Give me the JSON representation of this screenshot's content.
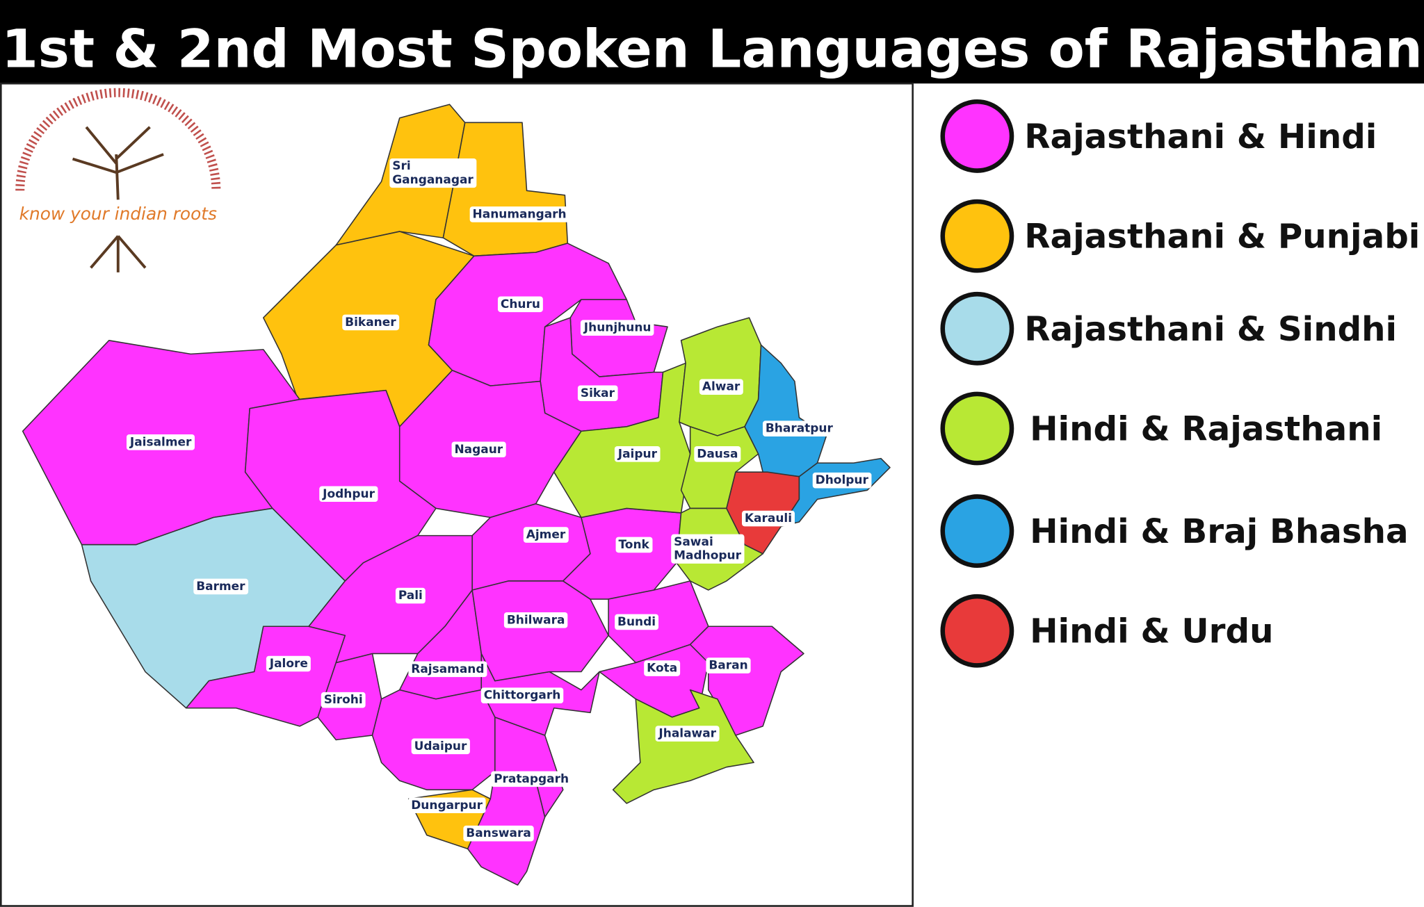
{
  "title": "1st & 2nd Most Spoken Languages of Rajasthan",
  "logo_text": "know your indian roots",
  "legend": [
    {
      "label": "Rajasthani & Hindi",
      "color": "#ff33ff"
    },
    {
      "label": "Rajasthani & Punjabi",
      "color": "#ffc20e"
    },
    {
      "label": "Rajasthani & Sindhi",
      "color": "#a8dcea"
    },
    {
      "label": "Hindi & Rajasthani",
      "color": "#b8e834"
    },
    {
      "label": "Hindi & Braj Bhasha",
      "color": "#2aa3e3"
    },
    {
      "label": "Hindi & Urdu",
      "color": "#e83a3a"
    }
  ],
  "districts": [
    {
      "name": "Sri Ganganagar",
      "category": 1
    },
    {
      "name": "Hanumangarh",
      "category": 1
    },
    {
      "name": "Bikaner",
      "category": 1
    },
    {
      "name": "Jaisalmer",
      "category": 0
    },
    {
      "name": "Churu",
      "category": 0
    },
    {
      "name": "Jhunjhunu",
      "category": 0
    },
    {
      "name": "Sikar",
      "category": 0
    },
    {
      "name": "Nagaur",
      "category": 0
    },
    {
      "name": "Jodhpur",
      "category": 0
    },
    {
      "name": "Barmer",
      "category": 2
    },
    {
      "name": "Jalore",
      "category": 0
    },
    {
      "name": "Sirohi",
      "category": 0
    },
    {
      "name": "Pali",
      "category": 0
    },
    {
      "name": "Ajmer",
      "category": 0
    },
    {
      "name": "Rajsamand",
      "category": 0
    },
    {
      "name": "Udaipur",
      "category": 0
    },
    {
      "name": "Dungarpur",
      "category": 1
    },
    {
      "name": "Banswara",
      "category": 0
    },
    {
      "name": "Pratapgarh",
      "category": 0
    },
    {
      "name": "Chittorgarh",
      "category": 0
    },
    {
      "name": "Bhilwara",
      "category": 0
    },
    {
      "name": "Tonk",
      "category": 0
    },
    {
      "name": "Bundi",
      "category": 0
    },
    {
      "name": "Kota",
      "category": 0
    },
    {
      "name": "Baran",
      "category": 0
    },
    {
      "name": "Jhalawar",
      "category": 3
    },
    {
      "name": "Jaipur",
      "category": 3
    },
    {
      "name": "Alwar",
      "category": 3
    },
    {
      "name": "Dausa",
      "category": 3
    },
    {
      "name": "Sawai Madhopur",
      "category": 3
    },
    {
      "name": "Bharatpur",
      "category": 4
    },
    {
      "name": "Karauli",
      "category": 5
    },
    {
      "name": "Dholpur",
      "category": 4
    }
  ]
}
